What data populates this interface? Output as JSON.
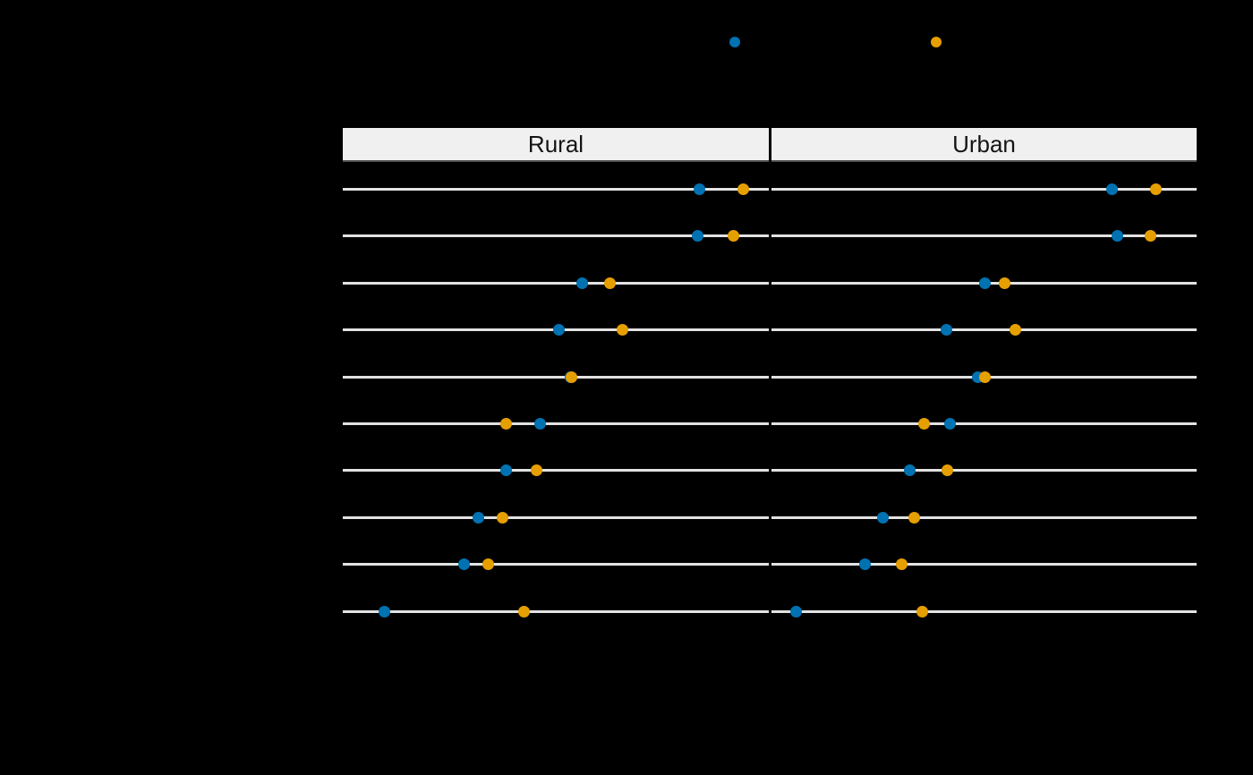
{
  "page": {
    "background_color": "#000000"
  },
  "legend": {
    "marker_names": [
      "legend-marker-blue",
      "legend-marker-orange"
    ]
  },
  "chart_data": {
    "type": "scatter",
    "subtype": "faceted-dot-plot",
    "facet_labels": [
      "Rural",
      "Urban"
    ],
    "n_rows": 10,
    "grid": "horizontal row lines only",
    "legend_position": "top",
    "x_units": "fraction of panel width (no axis tick labels visible in image)",
    "series": [
      {
        "name": "series-blue",
        "marker_color": "#0072B2",
        "x_frac": {
          "Rural": [
            0.838,
            0.832,
            0.563,
            0.508,
            0.534,
            0.464,
            0.384,
            0.319,
            0.284,
            0.097
          ],
          "Urban": [
            0.8,
            0.813,
            0.503,
            0.411,
            0.486,
            0.419,
            0.326,
            0.263,
            0.221,
            0.057
          ]
        }
      },
      {
        "name": "series-orange",
        "marker_color": "#E69F00",
        "x_frac": {
          "Rural": [
            0.941,
            0.918,
            0.628,
            0.657,
            0.536,
            0.384,
            0.454,
            0.374,
            0.342,
            0.426
          ],
          "Urban": [
            0.905,
            0.891,
            0.549,
            0.573,
            0.503,
            0.358,
            0.413,
            0.335,
            0.307,
            0.354
          ]
        }
      }
    ]
  }
}
